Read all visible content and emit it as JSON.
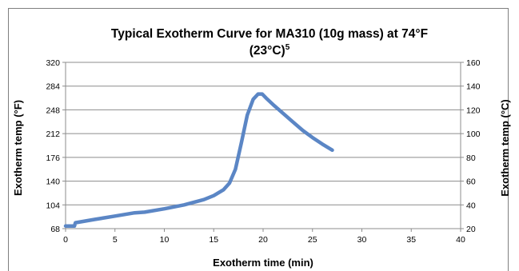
{
  "chart_data": {
    "type": "line",
    "title_line1": "Typical Exotherm Curve for MA310 (10g mass) at 74°F",
    "title_line2": "(23°C)",
    "title_superscript": "5",
    "xlabel": "Exotherm time (min)",
    "ylabel_left": "Exotherm temp (°F)",
    "ylabel_right": "Exotherm temp (°C)",
    "xlim": [
      0,
      40
    ],
    "ylim_left": [
      68,
      320
    ],
    "ylim_right": [
      20,
      160
    ],
    "x_ticks": [
      "0",
      "5",
      "10",
      "15",
      "20",
      "25",
      "30",
      "35",
      "40"
    ],
    "y_left_ticks": [
      "68",
      "104",
      "140",
      "176",
      "212",
      "248",
      "284",
      "320"
    ],
    "y_right_ticks": [
      "20",
      "40",
      "60",
      "80",
      "100",
      "120",
      "140",
      "160"
    ],
    "grid": true,
    "legend": "none",
    "series": [
      {
        "color": "#5b86c5",
        "x": [
          0,
          0.9,
          1.0,
          3,
          5,
          7,
          8,
          10,
          12,
          14,
          15,
          16,
          16.6,
          17.2,
          17.8,
          18.4,
          19.0,
          19.5,
          19.9,
          20.3,
          21,
          22,
          23,
          24,
          25,
          26,
          27
        ],
        "y": [
          72,
          72,
          77,
          82,
          87,
          92,
          93,
          98,
          104,
          112,
          118,
          127,
          137,
          158,
          198,
          240,
          264,
          272,
          272,
          266,
          256,
          243,
          230,
          217,
          206,
          196,
          187
        ]
      }
    ]
  }
}
